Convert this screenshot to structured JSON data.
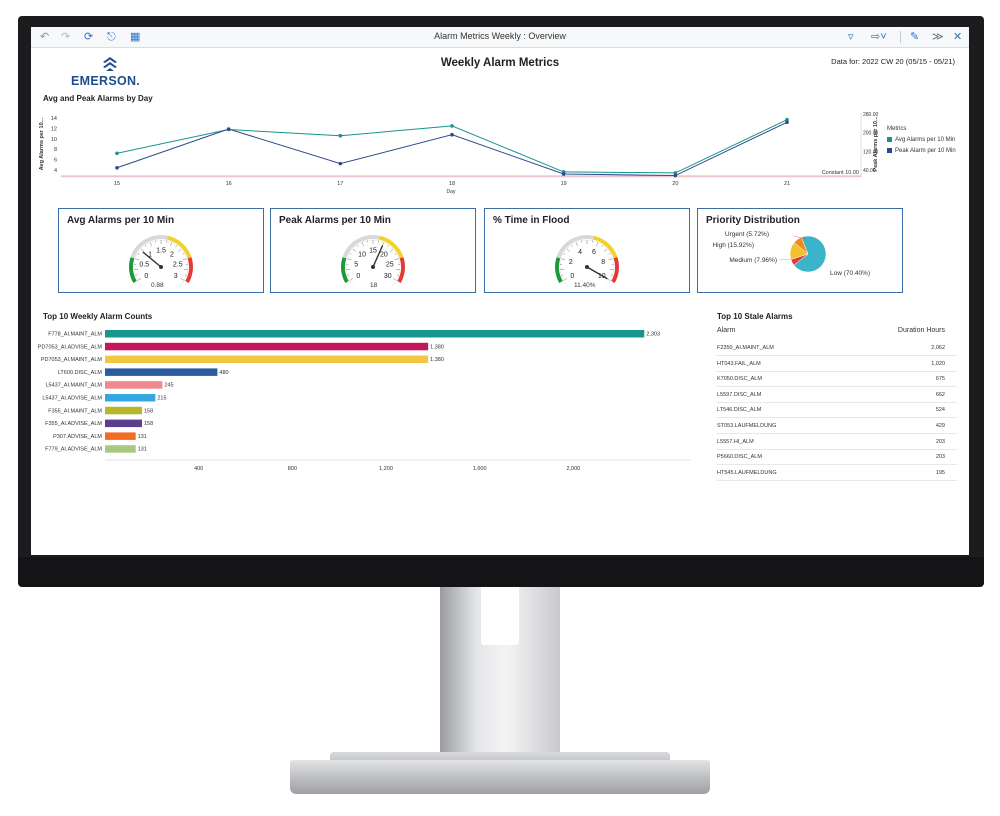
{
  "window": {
    "title": "Alarm Metrics Weekly : Overview",
    "toolbar_icons": [
      "back-icon",
      "forward-icon",
      "refresh-icon",
      "export-icon",
      "calculator-icon"
    ],
    "right_icons": [
      "filter-icon",
      "share-icon",
      "edit-icon",
      "collapse-icon",
      "close-icon"
    ]
  },
  "header": {
    "brand": "EMERSON.",
    "title": "Weekly Alarm Metrics",
    "data_for": "Data for: 2022 CW 20 (05/15 - 05/21)"
  },
  "line_chart": {
    "section_title": "Avg and Peak Alarms by Day",
    "y_left_label": "Avg Alarms per 10...",
    "y_right_label": "Peak Alarms per 10...",
    "x_label": "Day",
    "legend_title": "Metrics",
    "constant_label": "Constant 10.00",
    "colors": {
      "avg": "#17938a",
      "peak": "#2e4a8c",
      "constant": "#f08a8a"
    }
  },
  "kpis": {
    "avg": {
      "title": "Avg Alarms per 10 Min",
      "value": "0.88",
      "ticks": [
        "0",
        "0.5",
        "1",
        "1.5",
        "2",
        "2.5",
        "3"
      ],
      "level": 0.29
    },
    "peak": {
      "title": "Peak Alarms per 10 Min",
      "value": "18",
      "ticks": [
        "0",
        "5",
        "10",
        "15",
        "20",
        "25",
        "30"
      ],
      "level": 0.6
    },
    "flood": {
      "title": "% Time in Flood",
      "value": "11.40%",
      "ticks": [
        "0",
        "2",
        "4",
        "6",
        "8",
        "10"
      ],
      "level": 1.0
    },
    "priority": {
      "title": "Priority Distribution",
      "slices": [
        {
          "label": "Low (70.40%)",
          "value": 70.4,
          "color": "#3bb3c9"
        },
        {
          "label": "Urgent (5.72%)",
          "value": 5.72,
          "color": "#e53935"
        },
        {
          "label": "High (15.92%)",
          "value": 15.92,
          "color": "#f2c12e"
        },
        {
          "label": "Medium (7.96%)",
          "value": 7.96,
          "color": "#f08a1c"
        }
      ]
    }
  },
  "bar_section": {
    "title": "Top 10 Weekly Alarm Counts"
  },
  "stale_section": {
    "title": "Top 10 Stale Alarms",
    "col_alarm": "Alarm",
    "col_duration": "Duration Hours",
    "rows": [
      {
        "alarm": "F2350_AI.MAINT_ALM",
        "hours": "2,062"
      },
      {
        "alarm": "HT043.FAIL_ALM",
        "hours": "1,020"
      },
      {
        "alarm": "K7050.DISC_ALM",
        "hours": "675"
      },
      {
        "alarm": "L5597.DISC_ALM",
        "hours": "662"
      },
      {
        "alarm": "LT546.DISC_ALM",
        "hours": "524"
      },
      {
        "alarm": "ST053.LAUFMELDUNG",
        "hours": "429"
      },
      {
        "alarm": "L5557.HI_ALM",
        "hours": "203"
      },
      {
        "alarm": "P5660.DISC_ALM",
        "hours": "203"
      },
      {
        "alarm": "HT545.LAUFMELDUNG",
        "hours": "195"
      }
    ]
  },
  "chart_data": [
    {
      "type": "line",
      "title": "Avg and Peak Alarms by Day",
      "xlabel": "Day",
      "ylabel": "Avg Alarms per 10...",
      "y2label": "Peak Alarms per 10...",
      "x": [
        15,
        16,
        17,
        18,
        19,
        20,
        21
      ],
      "y_ticks": [
        4,
        6,
        8,
        10,
        12,
        14
      ],
      "y2_ticks": [
        "40.00",
        "120.00",
        "200.00",
        "280.00"
      ],
      "ylim": [
        3,
        15
      ],
      "series": [
        {
          "name": "Avg Alarms per 10 Min",
          "values": [
            7.2,
            11.8,
            10.6,
            12.5,
            3.6,
            3.4,
            13.7
          ]
        },
        {
          "name": "Peak Alarm per 10 Min",
          "values": [
            4.4,
            11.9,
            5.2,
            10.8,
            3.2,
            2.9,
            13.2
          ]
        }
      ],
      "constant": 10.0,
      "legend": "right"
    },
    {
      "type": "bar",
      "title": "Top 10 Weekly Alarm Counts",
      "orientation": "horizontal",
      "categories": [
        "F778_AI.MAINT_ALM",
        "PD7053_AI.ADVISE_ALM",
        "PD7053_AI.MAINT_ALM",
        "LT600.DISC_ALM",
        "L5437_AI.MAINT_ALM",
        "L5437_AI.ADVISE_ALM",
        "F355_AI.MAINT_ALM",
        "F355_AI.ADVISE_ALM",
        "P307.ADVISE_ALM",
        "F779_AI.ADVISE_ALM"
      ],
      "values": [
        2303,
        1380,
        1380,
        480,
        245,
        215,
        158,
        158,
        131,
        131
      ],
      "value_labels": [
        "2,303",
        "1,380",
        "1,380",
        "480",
        "245",
        "215",
        "158",
        "158",
        "131",
        "131"
      ],
      "colors": [
        "#16968f",
        "#c2185b",
        "#f2c744",
        "#2a5d9f",
        "#f0888f",
        "#33a8e0",
        "#b5b82a",
        "#5b3f8c",
        "#f26c23",
        "#a8c97f"
      ],
      "x_ticks": [
        "400",
        "800",
        "1,200",
        "1,600",
        "2,000"
      ],
      "xlim": [
        0,
        2400
      ]
    }
  ]
}
